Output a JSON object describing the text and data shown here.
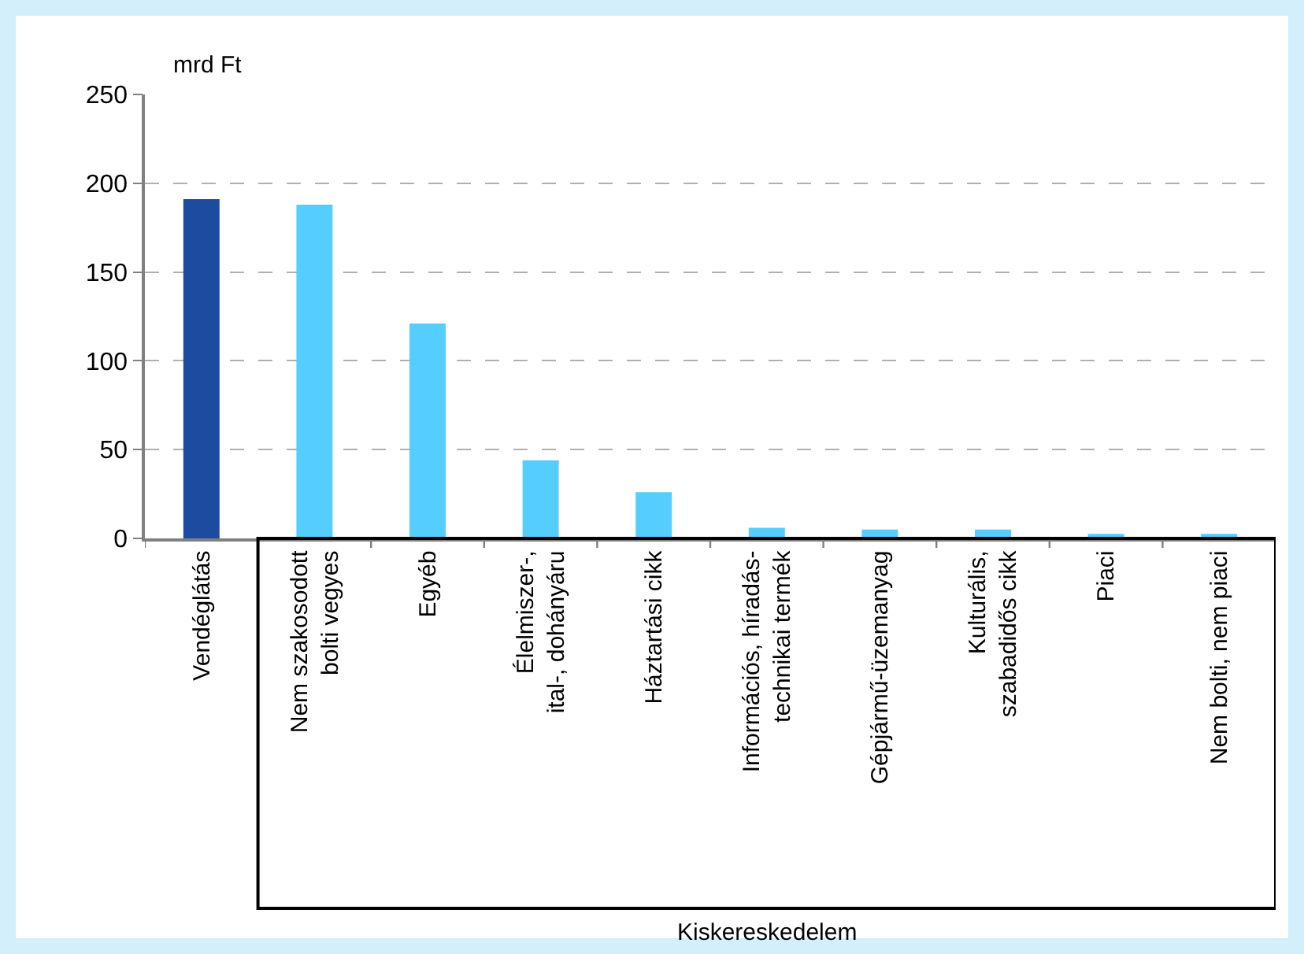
{
  "chart_data": {
    "type": "bar",
    "ylabel": "mrd Ft",
    "categories": [
      "Vendéglátás",
      "Nem szakosodott\nbolti vegyes",
      "Egyéb",
      "Élelmiszer-,\nital-, dohányáru",
      "Háztartási cikk",
      "Információs, híradás-\ntechnikai termék",
      "Gépjármű-üzemanyag",
      "Kulturális,\nszabadidős cikk",
      "Piaci",
      "Nem bolti, nem piaci"
    ],
    "values": [
      191,
      188,
      121,
      44,
      26,
      6,
      5,
      5,
      2.6,
      2.6
    ],
    "colors": [
      "#1c4ba0",
      "#55cdff",
      "#55cdff",
      "#55cdff",
      "#55cdff",
      "#55cdff",
      "#55cdff",
      "#55cdff",
      "#55cdff",
      "#55cdff"
    ],
    "ylim": [
      0,
      250
    ],
    "yticks": [
      0,
      50,
      100,
      150,
      200,
      250
    ],
    "grid": "y",
    "annotations": [
      "Kiskereskedelem"
    ]
  }
}
